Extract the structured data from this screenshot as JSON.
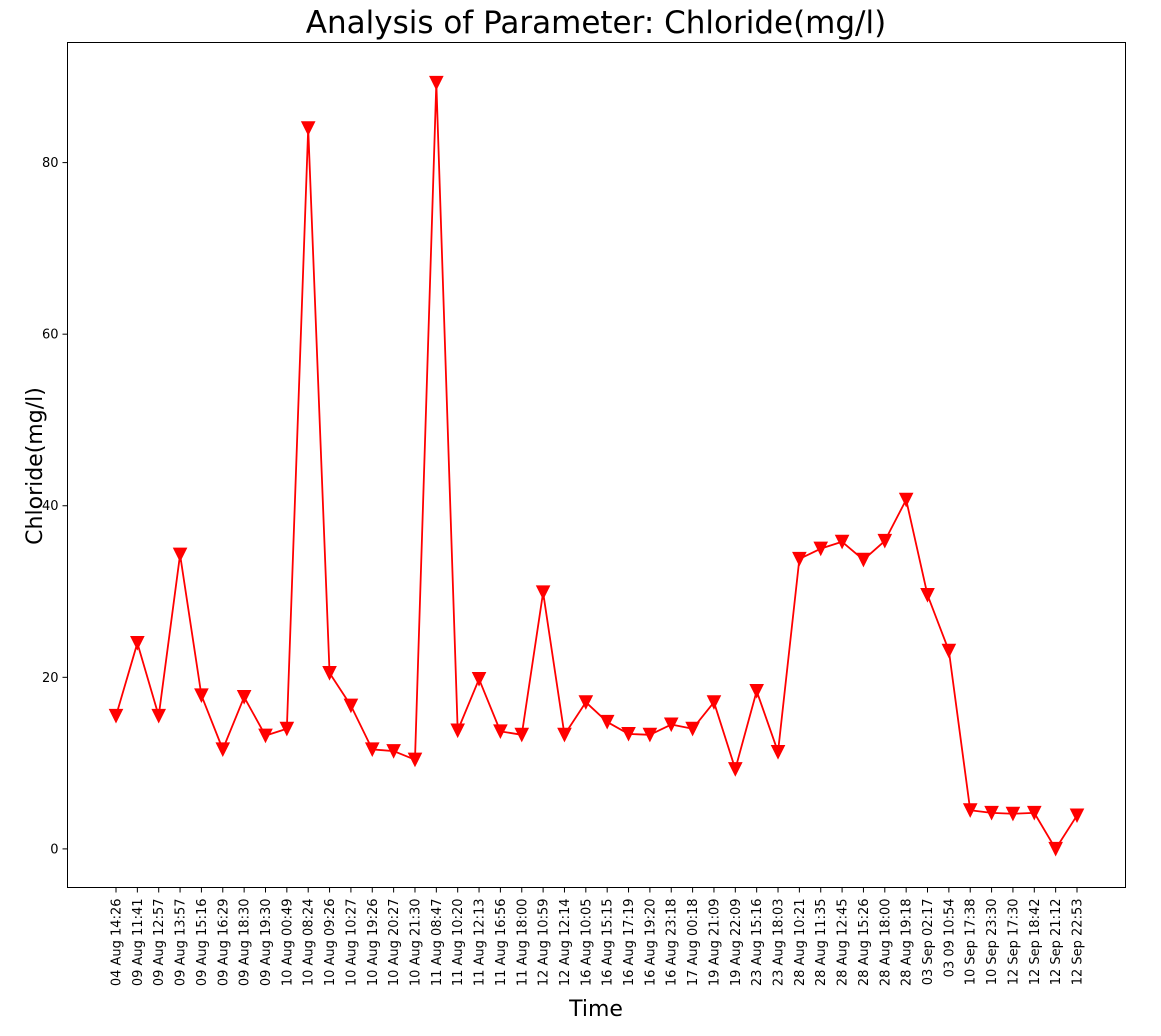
{
  "chart_data": {
    "type": "line",
    "title": "Analysis of Parameter: Chloride(mg/l)",
    "xlabel": "Time",
    "ylabel": "Chloride(mg/l)",
    "ylim": [
      -4.5,
      94
    ],
    "yticks": [
      0,
      20,
      40,
      60,
      80
    ],
    "grid": false,
    "legend": "none",
    "color": "#ff0000",
    "marker": "triangle-down",
    "categories": [
      "04 Aug 14:26",
      "09 Aug 11:41",
      "09 Aug 12:57",
      "09 Aug 13:57",
      "09 Aug 15:16",
      "09 Aug 16:29",
      "09 Aug 18:30",
      "09 Aug 19:30",
      "10 Aug 00:49",
      "10 Aug 08:24",
      "10 Aug 09:26",
      "10 Aug 10:27",
      "10 Aug 19:26",
      "10 Aug 20:27",
      "10 Aug 21:30",
      "11 Aug 08:47",
      "11 Aug 10:20",
      "11 Aug 12:13",
      "11 Aug 16:56",
      "11 Aug 18:00",
      "12 Aug 10:59",
      "12 Aug 12:14",
      "16 Aug 10:05",
      "16 Aug 15:15",
      "16 Aug 17:19",
      "16 Aug 19:20",
      "16 Aug 23:18",
      "17 Aug 00:18",
      "19 Aug 21:09",
      "19 Aug 22:09",
      "23 Aug 15:16",
      "23 Aug 18:03",
      "28 Aug 10:21",
      "28 Aug 11:35",
      "28 Aug 12:45",
      "28 Aug 15:26",
      "28 Aug 18:00",
      "28 Aug 19:18",
      "03 Sep 02:17",
      "03 09 10:54",
      "10 Sep 17:38",
      "10 Sep 23:30",
      "12 Sep 17:30",
      "12 Sep 18:42",
      "12 Sep 21:12",
      "12 Sep 22:53"
    ],
    "series": [
      {
        "values": [
          15.5,
          24.0,
          15.5,
          34.3,
          17.9,
          11.6,
          17.7,
          13.2,
          14.0,
          84.0,
          20.5,
          16.7,
          11.6,
          11.4,
          10.4,
          89.3,
          13.8,
          19.8,
          13.7,
          13.3,
          29.9,
          13.3,
          17.1,
          14.8,
          13.4,
          13.3,
          14.5,
          14.0,
          17.1,
          9.3,
          18.4,
          11.3,
          33.8,
          35.0,
          35.8,
          33.7,
          35.9,
          40.7,
          29.6,
          23.1,
          4.5,
          4.2,
          4.1,
          4.2,
          0.0,
          3.9
        ]
      }
    ]
  }
}
